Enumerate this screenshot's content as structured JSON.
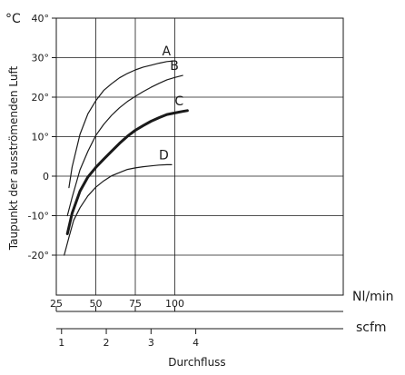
{
  "chart_data": {
    "type": "line",
    "y_unit": "°C",
    "ylabel": "Taupunkt der ausströmenden Luft",
    "xlabel": "Durchfluss",
    "x_unit": "Nl/min",
    "x2_unit": "scfm",
    "xlim": [
      25,
      110
    ],
    "ylim": [
      -30,
      40
    ],
    "grid": true,
    "x_ticks": [
      25,
      50,
      75,
      100
    ],
    "x_tick_labels": [
      "25",
      "50",
      "75",
      "100"
    ],
    "y_ticks": [
      40,
      30,
      20,
      10,
      0,
      -10,
      -20
    ],
    "y_tick_labels": [
      "40°",
      "30°",
      "20°",
      "10°",
      "0",
      "-10°",
      "-20°"
    ],
    "x2_ticks": [
      1,
      2,
      3,
      4
    ],
    "x2_tick_labels": [
      "1",
      "2",
      "3",
      "4"
    ],
    "series": [
      {
        "name": "A",
        "bold": false,
        "x": [
          33,
          35,
          40,
          45,
          50,
          55,
          60,
          65,
          70,
          75,
          80,
          85,
          90,
          95,
          100
        ],
        "y": [
          -2.9,
          2.3,
          10.6,
          15.8,
          19.1,
          21.7,
          23.4,
          24.9,
          26.0,
          26.9,
          27.6,
          28.1,
          28.6,
          29.0,
          29.2
        ]
      },
      {
        "name": "B",
        "bold": false,
        "x": [
          32,
          35,
          40,
          45,
          50,
          55,
          60,
          65,
          70,
          75,
          80,
          85,
          90,
          95,
          100,
          105
        ],
        "y": [
          -10.0,
          -5.4,
          1.6,
          6.3,
          10.3,
          13.1,
          15.4,
          17.3,
          18.9,
          20.2,
          21.4,
          22.5,
          23.5,
          24.4,
          25.0,
          25.5
        ]
      },
      {
        "name": "C",
        "bold": true,
        "x": [
          32,
          35,
          40,
          45,
          50,
          55,
          60,
          65,
          70,
          75,
          80,
          85,
          90,
          95,
          100,
          105,
          108
        ],
        "y": [
          -14.6,
          -9.4,
          -3.8,
          -0.2,
          2.2,
          4.3,
          6.3,
          8.3,
          10.1,
          11.6,
          12.8,
          13.9,
          14.8,
          15.6,
          16.0,
          16.4,
          16.6
        ]
      },
      {
        "name": "D",
        "bold": false,
        "x": [
          30,
          33,
          36,
          40,
          45,
          50,
          55,
          60,
          65,
          70,
          75,
          80,
          85,
          90,
          95,
          98
        ],
        "y": [
          -20.0,
          -15.5,
          -11.2,
          -8.0,
          -5.0,
          -2.8,
          -1.2,
          0.1,
          0.9,
          1.7,
          2.1,
          2.4,
          2.6,
          2.8,
          2.9,
          2.9
        ]
      }
    ]
  }
}
